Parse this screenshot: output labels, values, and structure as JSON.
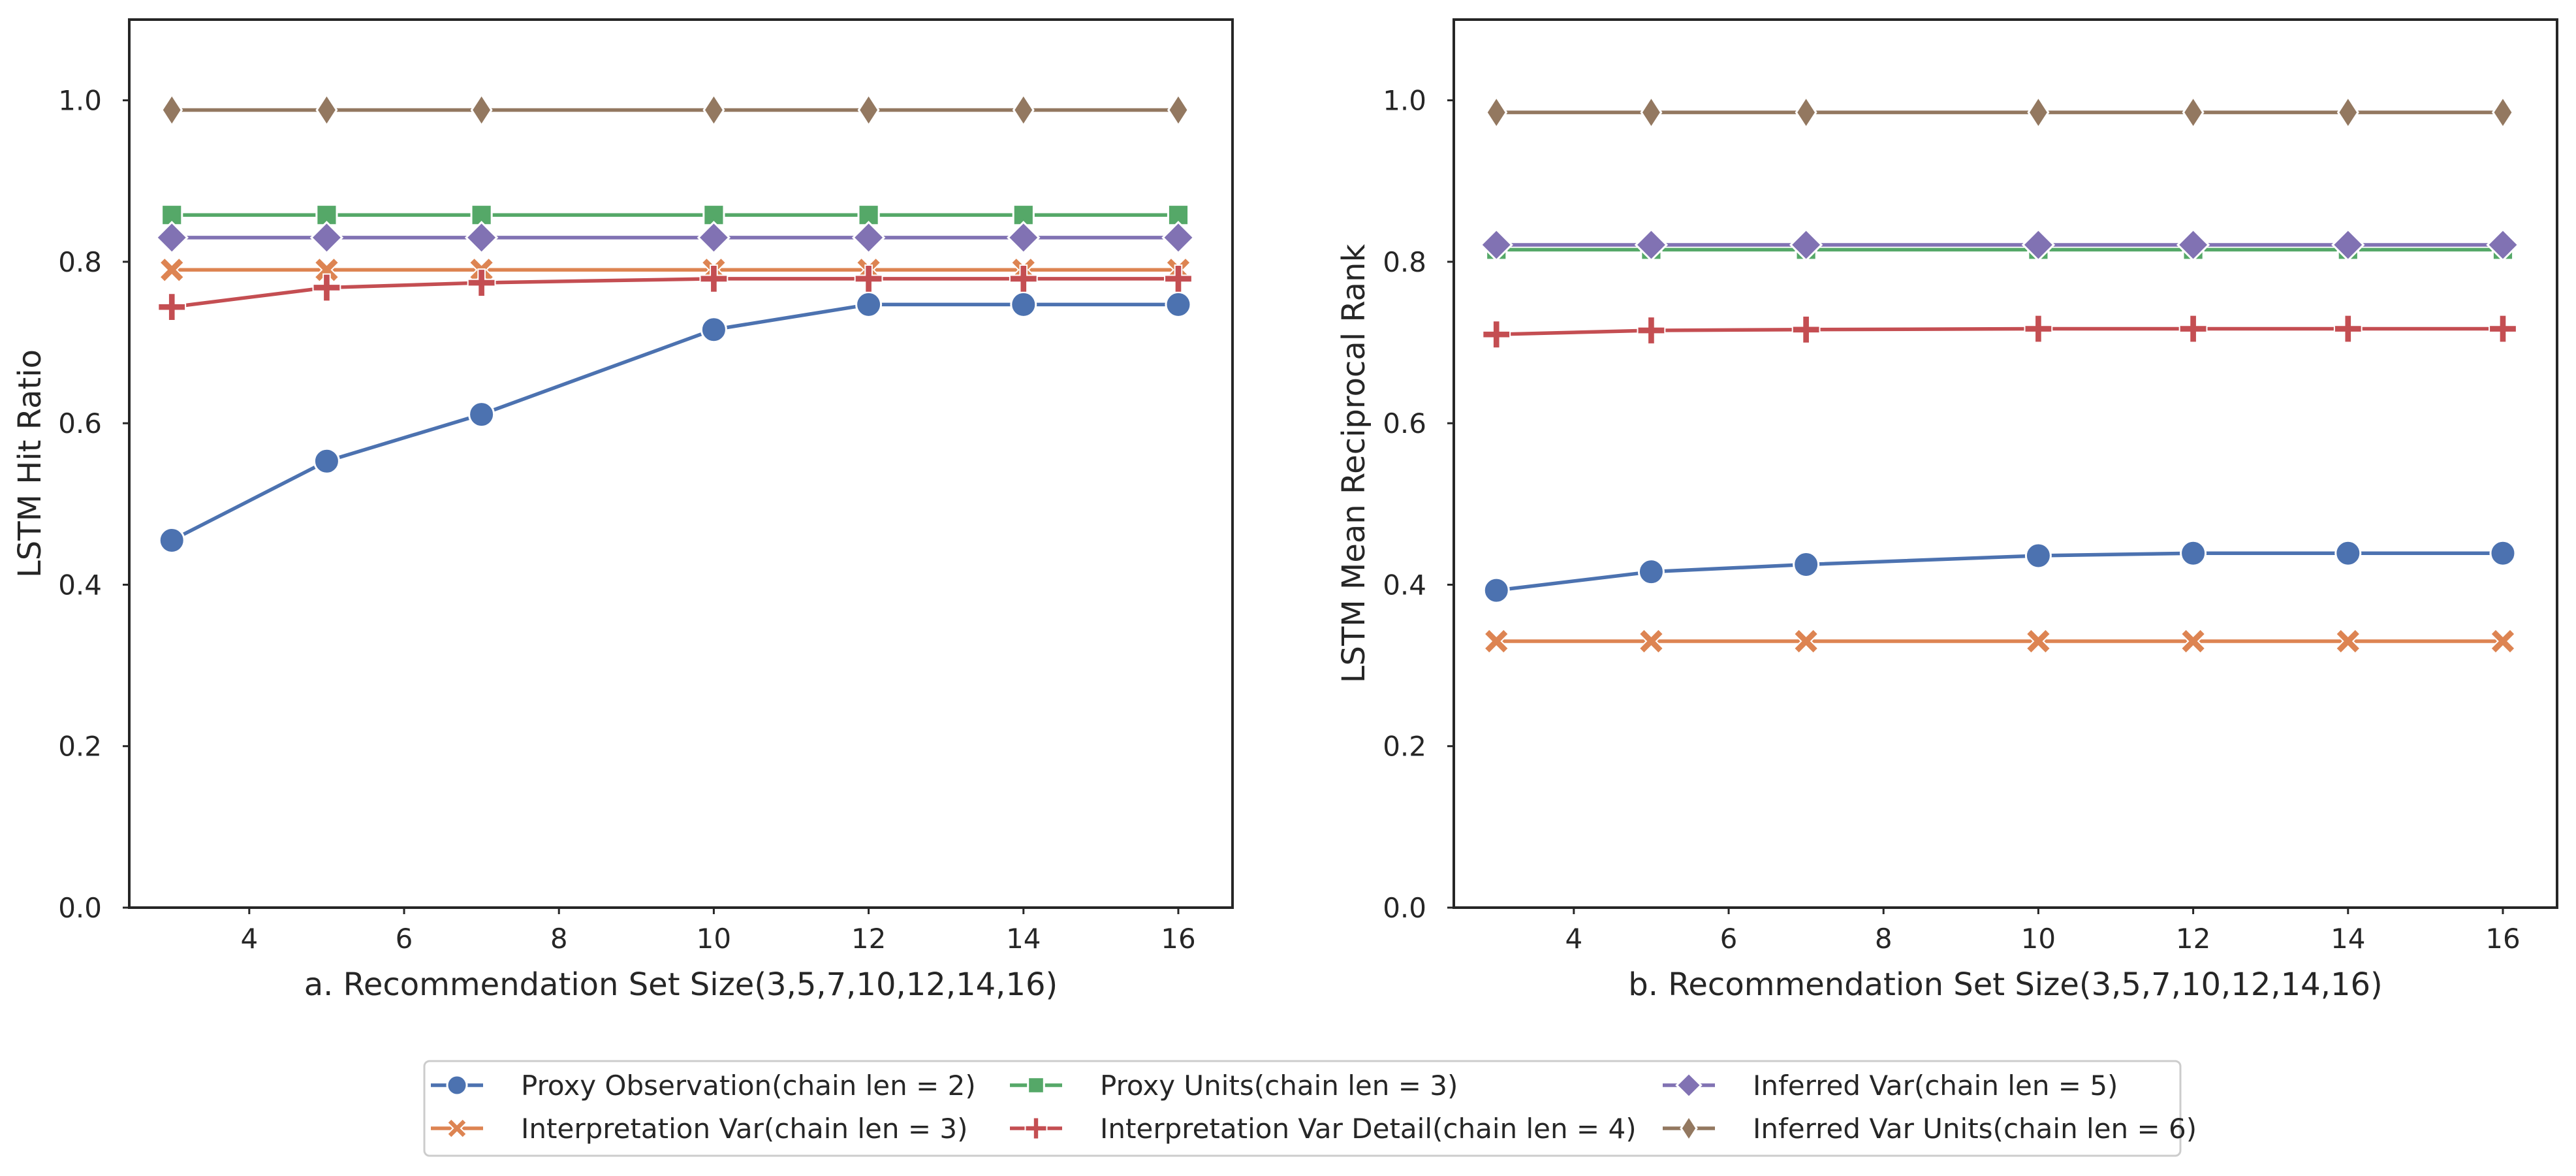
{
  "charts": [
    {
      "key": "a",
      "xlabel": "a.  Recommendation Set Size(3,5,7,10,12,14,16)",
      "ylabel": "LSTM Hit Ratio"
    },
    {
      "key": "b",
      "xlabel": "b.  Recommendation Set Size(3,5,7,10,12,14,16)",
      "ylabel": "LSTM Mean Reciprocal Rank"
    }
  ],
  "legend": {
    "placement": "bottom-center",
    "columns": 3,
    "entries": [
      "Proxy Observation(chain len = 2)",
      "Interpretation Var(chain len = 3)",
      "Proxy Units(chain len = 3)",
      "Interpretation Var Detail(chain len = 4)",
      "Inferred Var(chain len = 5)",
      "Inferred Var Units(chain len = 6)"
    ]
  },
  "chart_data": [
    {
      "type": "line",
      "xlabel": "a.  Recommendation Set Size(3,5,7,10,12,14,16)",
      "ylabel": "LSTM Hit Ratio",
      "xlim": [
        2.45,
        16.7
      ],
      "ylim": [
        0.0,
        1.1
      ],
      "xticks": [
        4,
        6,
        8,
        10,
        12,
        14,
        16
      ],
      "yticks": [
        0.0,
        0.2,
        0.4,
        0.6,
        0.8,
        1.0
      ],
      "grid": false,
      "x": [
        3,
        5,
        7,
        10,
        12,
        14,
        16
      ],
      "series": [
        {
          "name": "Proxy Observation(chain len = 2)",
          "color": "#4c72b0",
          "marker": "circle",
          "values": [
            0.455,
            0.553,
            0.611,
            0.716,
            0.747,
            0.747,
            0.747
          ]
        },
        {
          "name": "Interpretation Var(chain len = 3)",
          "color": "#dd8452",
          "marker": "x",
          "values": [
            0.79,
            0.79,
            0.79,
            0.79,
            0.79,
            0.79,
            0.79
          ]
        },
        {
          "name": "Proxy Units(chain len = 3)",
          "color": "#55a868",
          "marker": "square",
          "values": [
            0.858,
            0.858,
            0.858,
            0.858,
            0.858,
            0.858,
            0.858
          ]
        },
        {
          "name": "Interpretation Var Detail(chain len = 4)",
          "color": "#c44e52",
          "marker": "plus",
          "values": [
            0.744,
            0.768,
            0.774,
            0.779,
            0.779,
            0.779,
            0.779
          ]
        },
        {
          "name": "Inferred Var(chain len = 5)",
          "color": "#8172b3",
          "marker": "diamond",
          "values": [
            0.83,
            0.83,
            0.83,
            0.83,
            0.83,
            0.83,
            0.83
          ]
        },
        {
          "name": "Inferred Var Units(chain len = 6)",
          "color": "#937860",
          "marker": "thin_diamond",
          "values": [
            0.988,
            0.988,
            0.988,
            0.988,
            0.988,
            0.988,
            0.988
          ]
        }
      ]
    },
    {
      "type": "line",
      "xlabel": "b.  Recommendation Set Size(3,5,7,10,12,14,16)",
      "ylabel": "LSTM Mean Reciprocal Rank",
      "xlim": [
        2.45,
        16.7
      ],
      "ylim": [
        0.0,
        1.1
      ],
      "xticks": [
        4,
        6,
        8,
        10,
        12,
        14,
        16
      ],
      "yticks": [
        0.0,
        0.2,
        0.4,
        0.6,
        0.8,
        1.0
      ],
      "grid": false,
      "x": [
        3,
        5,
        7,
        10,
        12,
        14,
        16
      ],
      "series": [
        {
          "name": "Proxy Observation(chain len = 2)",
          "color": "#4c72b0",
          "marker": "circle",
          "values": [
            0.393,
            0.416,
            0.425,
            0.436,
            0.439,
            0.439,
            0.439
          ]
        },
        {
          "name": "Interpretation Var(chain len = 3)",
          "color": "#dd8452",
          "marker": "x",
          "values": [
            0.33,
            0.33,
            0.33,
            0.33,
            0.33,
            0.33,
            0.33
          ]
        },
        {
          "name": "Proxy Units(chain len = 3)",
          "color": "#55a868",
          "marker": "square",
          "values": [
            0.815,
            0.815,
            0.815,
            0.815,
            0.815,
            0.815,
            0.815
          ]
        },
        {
          "name": "Interpretation Var Detail(chain len = 4)",
          "color": "#c44e52",
          "marker": "plus",
          "values": [
            0.71,
            0.715,
            0.716,
            0.717,
            0.717,
            0.717,
            0.717
          ]
        },
        {
          "name": "Inferred Var(chain len = 5)",
          "color": "#8172b3",
          "marker": "diamond",
          "values": [
            0.821,
            0.821,
            0.821,
            0.821,
            0.821,
            0.821,
            0.821
          ]
        },
        {
          "name": "Inferred Var Units(chain len = 6)",
          "color": "#937860",
          "marker": "thin_diamond",
          "values": [
            0.985,
            0.985,
            0.985,
            0.985,
            0.985,
            0.985,
            0.985
          ]
        }
      ]
    }
  ]
}
